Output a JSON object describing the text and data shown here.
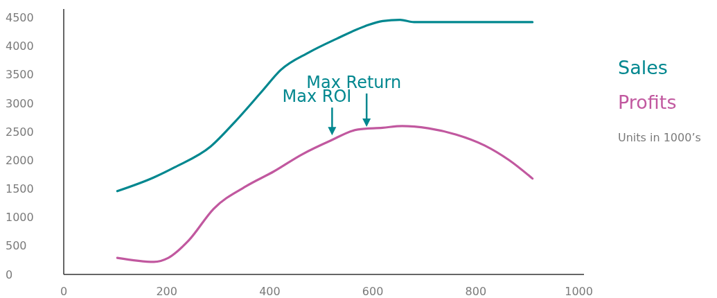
{
  "chart_data": {
    "type": "line",
    "xlim": [
      0,
      1010
    ],
    "xticks": [
      0,
      200,
      400,
      600,
      800,
      1000
    ],
    "ylim": [
      0,
      4650
    ],
    "yticks": [
      0,
      500,
      1000,
      1500,
      2000,
      2500,
      3000,
      3500,
      4000,
      4500
    ],
    "grid": false,
    "legend": "right",
    "marker": "none",
    "line_style": "solid",
    "series": [
      {
        "name": "Sales",
        "color": "#00878f",
        "x": [
          104,
          175,
          216,
          285,
          332,
          386,
          421,
          476,
          530,
          585,
          619,
          653,
          680,
          817,
          910
        ],
        "values": [
          1460,
          1700,
          1880,
          2240,
          2670,
          3220,
          3580,
          3890,
          4130,
          4350,
          4440,
          4460,
          4420,
          4420,
          4420
        ]
      },
      {
        "name": "Profits",
        "color": "#c1589f",
        "x": [
          104,
          175,
          203,
          243,
          291,
          353,
          407,
          462,
          517,
          571,
          619,
          657,
          708,
          762,
          817,
          865,
          910
        ],
        "values": [
          290,
          220,
          290,
          600,
          1150,
          1540,
          1800,
          2100,
          2340,
          2540,
          2570,
          2600,
          2560,
          2450,
          2260,
          2000,
          1680
        ]
      }
    ],
    "annotations": [
      {
        "text": "Max ROI",
        "x": 521,
        "y": 2340
      },
      {
        "text": "Max Return",
        "x": 588,
        "y": 2490
      },
      "Units in 1000’s"
    ]
  }
}
